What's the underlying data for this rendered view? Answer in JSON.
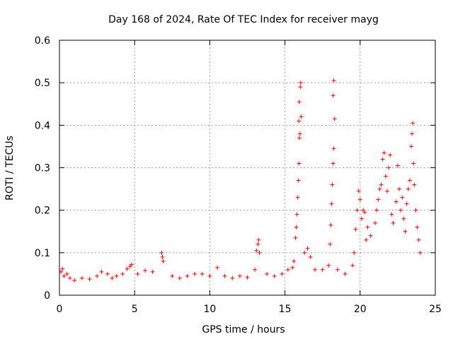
{
  "chart_data": {
    "type": "scatter",
    "title": "Day 168 of 2024, Rate Of TEC Index for receiver mayg",
    "xlabel": "GPS time / hours",
    "ylabel": "ROTI / TECUs",
    "xlim": [
      0,
      25
    ],
    "ylim": [
      0,
      0.6
    ],
    "xticks": [
      0,
      5,
      10,
      15,
      20,
      25
    ],
    "yticks": [
      0,
      0.1,
      0.2,
      0.3,
      0.4,
      0.5,
      0.6
    ],
    "xtick_labels": [
      "0",
      "5",
      "10",
      "15",
      "20",
      "25"
    ],
    "ytick_labels": [
      "0",
      "0.1",
      "0.2",
      "0.3",
      "0.4",
      "0.5",
      "0.6"
    ],
    "grid": true,
    "marker": "+",
    "marker_color": "#ff0000",
    "series": [
      {
        "name": "ROTI",
        "points": [
          [
            0.1,
            0.055
          ],
          [
            0.2,
            0.062
          ],
          [
            0.3,
            0.045
          ],
          [
            0.5,
            0.05
          ],
          [
            0.7,
            0.04
          ],
          [
            1.0,
            0.035
          ],
          [
            1.5,
            0.04
          ],
          [
            2.0,
            0.038
          ],
          [
            2.5,
            0.045
          ],
          [
            2.8,
            0.055
          ],
          [
            3.2,
            0.05
          ],
          [
            3.5,
            0.04
          ],
          [
            3.8,
            0.045
          ],
          [
            4.2,
            0.05
          ],
          [
            4.5,
            0.062
          ],
          [
            4.7,
            0.068
          ],
          [
            4.8,
            0.072
          ],
          [
            5.2,
            0.05
          ],
          [
            5.7,
            0.058
          ],
          [
            6.2,
            0.055
          ],
          [
            6.8,
            0.1
          ],
          [
            6.85,
            0.09
          ],
          [
            6.9,
            0.08
          ],
          [
            7.5,
            0.045
          ],
          [
            8.0,
            0.04
          ],
          [
            8.5,
            0.045
          ],
          [
            9.0,
            0.05
          ],
          [
            9.5,
            0.05
          ],
          [
            10.0,
            0.045
          ],
          [
            10.5,
            0.065
          ],
          [
            11.0,
            0.045
          ],
          [
            11.5,
            0.04
          ],
          [
            12.0,
            0.045
          ],
          [
            12.5,
            0.042
          ],
          [
            13.0,
            0.06
          ],
          [
            13.1,
            0.105
          ],
          [
            13.2,
            0.12
          ],
          [
            13.25,
            0.13
          ],
          [
            13.3,
            0.1
          ],
          [
            13.8,
            0.05
          ],
          [
            14.3,
            0.045
          ],
          [
            14.8,
            0.05
          ],
          [
            15.2,
            0.06
          ],
          [
            15.5,
            0.065
          ],
          [
            15.6,
            0.08
          ],
          [
            15.7,
            0.135
          ],
          [
            15.75,
            0.16
          ],
          [
            15.8,
            0.19
          ],
          [
            15.85,
            0.23
          ],
          [
            15.9,
            0.27
          ],
          [
            15.93,
            0.31
          ],
          [
            15.96,
            0.37
          ],
          [
            16.0,
            0.38
          ],
          [
            15.92,
            0.41
          ],
          [
            15.95,
            0.455
          ],
          [
            16.02,
            0.49
          ],
          [
            16.05,
            0.5
          ],
          [
            16.08,
            0.42
          ],
          [
            16.3,
            0.1
          ],
          [
            16.5,
            0.11
          ],
          [
            16.7,
            0.09
          ],
          [
            17.0,
            0.06
          ],
          [
            17.5,
            0.06
          ],
          [
            17.9,
            0.07
          ],
          [
            18.0,
            0.12
          ],
          [
            18.05,
            0.165
          ],
          [
            18.1,
            0.215
          ],
          [
            18.15,
            0.26
          ],
          [
            18.2,
            0.31
          ],
          [
            18.25,
            0.345
          ],
          [
            18.3,
            0.415
          ],
          [
            18.2,
            0.47
          ],
          [
            18.25,
            0.505
          ],
          [
            18.5,
            0.06
          ],
          [
            19.0,
            0.05
          ],
          [
            19.5,
            0.07
          ],
          [
            19.6,
            0.1
          ],
          [
            19.7,
            0.155
          ],
          [
            19.8,
            0.2
          ],
          [
            19.9,
            0.245
          ],
          [
            20.0,
            0.225
          ],
          [
            20.1,
            0.18
          ],
          [
            20.2,
            0.2
          ],
          [
            20.3,
            0.195
          ],
          [
            20.4,
            0.13
          ],
          [
            20.5,
            0.16
          ],
          [
            20.7,
            0.14
          ],
          [
            21.0,
            0.17
          ],
          [
            21.1,
            0.2
          ],
          [
            21.2,
            0.225
          ],
          [
            21.3,
            0.25
          ],
          [
            21.4,
            0.26
          ],
          [
            21.5,
            0.32
          ],
          [
            21.6,
            0.335
          ],
          [
            21.7,
            0.28
          ],
          [
            21.8,
            0.245
          ],
          [
            21.9,
            0.3
          ],
          [
            22.0,
            0.33
          ],
          [
            22.1,
            0.19
          ],
          [
            22.2,
            0.17
          ],
          [
            22.4,
            0.22
          ],
          [
            22.5,
            0.305
          ],
          [
            22.6,
            0.25
          ],
          [
            22.7,
            0.2
          ],
          [
            22.8,
            0.23
          ],
          [
            22.9,
            0.18
          ],
          [
            23.0,
            0.15
          ],
          [
            23.1,
            0.215
          ],
          [
            23.2,
            0.25
          ],
          [
            23.3,
            0.27
          ],
          [
            23.4,
            0.35
          ],
          [
            23.45,
            0.38
          ],
          [
            23.5,
            0.405
          ],
          [
            23.55,
            0.31
          ],
          [
            23.6,
            0.26
          ],
          [
            23.7,
            0.2
          ],
          [
            23.8,
            0.16
          ],
          [
            23.9,
            0.13
          ],
          [
            24.0,
            0.1
          ]
        ]
      }
    ]
  }
}
